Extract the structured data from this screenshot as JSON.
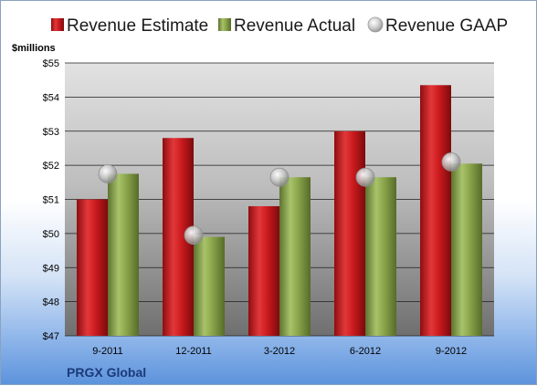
{
  "chart_data": {
    "type": "bar",
    "title": "",
    "ylabel": "$millions",
    "xlabel": "",
    "categories": [
      "9-2011",
      "12-2011",
      "3-2012",
      "6-2012",
      "9-2012"
    ],
    "ylim": [
      47,
      55
    ],
    "yticks": [
      "$47",
      "$48",
      "$49",
      "$50",
      "$51",
      "$52",
      "$53",
      "$54",
      "$55"
    ],
    "series": [
      {
        "name": "Revenue Estimate",
        "kind": "bar",
        "color": "#c8191c",
        "values": [
          51.0,
          52.8,
          50.8,
          53.0,
          54.35
        ]
      },
      {
        "name": "Revenue Actual",
        "kind": "bar",
        "color": "#8aa54a",
        "values": [
          51.75,
          49.9,
          51.65,
          51.65,
          52.05
        ]
      },
      {
        "name": "Revenue GAAP",
        "kind": "marker",
        "color": "#b8b8b8",
        "values": [
          51.75,
          49.95,
          51.65,
          51.65,
          52.1
        ]
      }
    ],
    "legend_position": "top",
    "grid": true
  },
  "footer": {
    "company": "PRGX Global"
  }
}
